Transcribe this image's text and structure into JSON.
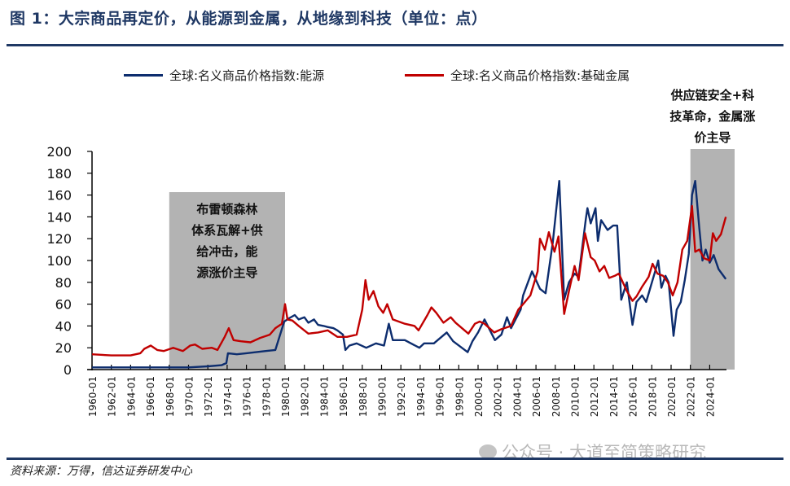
{
  "title": "图 1：大宗商品再定价，从能源到金属，从地缘到科技（单位：点）",
  "source": "资料来源：万得，信达证券研发中心",
  "watermark": "公众号 · 大道至简策略研究",
  "chart_data": {
    "type": "line",
    "title": "图 1：大宗商品再定价，从能源到金属，从地缘到科技（单位：点）",
    "ylim": [
      0,
      200
    ],
    "yticks": [
      "0",
      "20",
      "40",
      "60",
      "80",
      "100",
      "120",
      "140",
      "160",
      "180",
      "200"
    ],
    "xticks": [
      "1960-01",
      "1962-01",
      "1964-01",
      "1966-01",
      "1968-01",
      "1970-01",
      "1972-01",
      "1974-01",
      "1976-01",
      "1978-01",
      "1980-01",
      "1982-01",
      "1984-01",
      "1986-01",
      "1988-01",
      "1990-01",
      "1992-01",
      "1994-01",
      "1996-01",
      "1998-01",
      "2000-01",
      "2002-01",
      "2004-01",
      "2006-01",
      "2008-01",
      "2010-01",
      "2012-01",
      "2014-01",
      "2016-01",
      "2018-01",
      "2020-01",
      "2022-01",
      "2024-01"
    ],
    "grid": false,
    "legend_position": "top",
    "series": [
      {
        "name": "全球:名义商品价格指数:能源",
        "color": "#0d2d6e",
        "points": [
          [
            "1960-01",
            2
          ],
          [
            "1966-01",
            2
          ],
          [
            "1970-01",
            2
          ],
          [
            "1972-01",
            3
          ],
          [
            "1973-06",
            4
          ],
          [
            "1973-12",
            6
          ],
          [
            "1974-02",
            15
          ],
          [
            "1975-01",
            14
          ],
          [
            "1976-01",
            15
          ],
          [
            "1977-01",
            16
          ],
          [
            "1978-01",
            17
          ],
          [
            "1979-01",
            18
          ],
          [
            "1979-06",
            30
          ],
          [
            "1979-12",
            44
          ],
          [
            "1980-06",
            47
          ],
          [
            "1981-01",
            50
          ],
          [
            "1981-06",
            46
          ],
          [
            "1982-01",
            48
          ],
          [
            "1982-06",
            43
          ],
          [
            "1983-01",
            46
          ],
          [
            "1983-06",
            41
          ],
          [
            "1984-01",
            40
          ],
          [
            "1984-06",
            39
          ],
          [
            "1985-01",
            38
          ],
          [
            "1985-06",
            36
          ],
          [
            "1986-01",
            32
          ],
          [
            "1986-04",
            18
          ],
          [
            "1986-09",
            22
          ],
          [
            "1987-06",
            24
          ],
          [
            "1988-06",
            20
          ],
          [
            "1989-06",
            24
          ],
          [
            "1990-04",
            22
          ],
          [
            "1990-10",
            42
          ],
          [
            "1991-03",
            27
          ],
          [
            "1992-06",
            27
          ],
          [
            "1993-12",
            20
          ],
          [
            "1994-06",
            24
          ],
          [
            "1995-06",
            24
          ],
          [
            "1996-10",
            34
          ],
          [
            "1997-06",
            26
          ],
          [
            "1998-12",
            16
          ],
          [
            "1999-06",
            26
          ],
          [
            "2000-01",
            34
          ],
          [
            "2000-09",
            46
          ],
          [
            "2001-10",
            27
          ],
          [
            "2002-06",
            32
          ],
          [
            "2003-01",
            48
          ],
          [
            "2003-06",
            38
          ],
          [
            "2004-06",
            55
          ],
          [
            "2004-09",
            68
          ],
          [
            "2005-08",
            90
          ],
          [
            "2006-06",
            74
          ],
          [
            "2007-01",
            70
          ],
          [
            "2007-10",
            117
          ],
          [
            "2008-06",
            173
          ],
          [
            "2008-12",
            64
          ],
          [
            "2009-06",
            80
          ],
          [
            "2010-01",
            88
          ],
          [
            "2010-06",
            85
          ],
          [
            "2011-03",
            138
          ],
          [
            "2011-05",
            148
          ],
          [
            "2011-09",
            134
          ],
          [
            "2012-03",
            148
          ],
          [
            "2012-06",
            118
          ],
          [
            "2012-10",
            137
          ],
          [
            "2013-06",
            128
          ],
          [
            "2014-01",
            132
          ],
          [
            "2014-06",
            132
          ],
          [
            "2014-11",
            64
          ],
          [
            "2015-06",
            80
          ],
          [
            "2016-01",
            41
          ],
          [
            "2016-06",
            62
          ],
          [
            "2017-01",
            68
          ],
          [
            "2017-06",
            62
          ],
          [
            "2018-06",
            92
          ],
          [
            "2018-09",
            100
          ],
          [
            "2019-01",
            75
          ],
          [
            "2019-06",
            86
          ],
          [
            "2019-10",
            80
          ],
          [
            "2020-04",
            31
          ],
          [
            "2020-08",
            55
          ],
          [
            "2021-01",
            62
          ],
          [
            "2021-06",
            82
          ],
          [
            "2021-11",
            106
          ],
          [
            "2022-03",
            160
          ],
          [
            "2022-07",
            173
          ],
          [
            "2022-12",
            130
          ],
          [
            "2023-04",
            100
          ],
          [
            "2023-08",
            110
          ],
          [
            "2024-01",
            98
          ],
          [
            "2024-06",
            105
          ],
          [
            "2024-12",
            92
          ],
          [
            "2025-09",
            83
          ]
        ]
      },
      {
        "name": "全球:名义商品价格指数:基础金属",
        "color": "#c00000",
        "points": [
          [
            "1960-01",
            14
          ],
          [
            "1962-01",
            13
          ],
          [
            "1964-01",
            13
          ],
          [
            "1965-01",
            15
          ],
          [
            "1965-06",
            19
          ],
          [
            "1966-02",
            22
          ],
          [
            "1966-10",
            18
          ],
          [
            "1967-06",
            17
          ],
          [
            "1968-06",
            20
          ],
          [
            "1969-06",
            17
          ],
          [
            "1970-03",
            22
          ],
          [
            "1970-09",
            23
          ],
          [
            "1971-06",
            19
          ],
          [
            "1972-06",
            20
          ],
          [
            "1973-01",
            18
          ],
          [
            "1973-10",
            30
          ],
          [
            "1974-03",
            38
          ],
          [
            "1974-09",
            27
          ],
          [
            "1975-06",
            26
          ],
          [
            "1976-06",
            25
          ],
          [
            "1977-06",
            29
          ],
          [
            "1978-06",
            32
          ],
          [
            "1979-01",
            38
          ],
          [
            "1979-09",
            42
          ],
          [
            "1980-01",
            60
          ],
          [
            "1980-04",
            46
          ],
          [
            "1980-10",
            45
          ],
          [
            "1981-06",
            40
          ],
          [
            "1982-06",
            33
          ],
          [
            "1983-06",
            34
          ],
          [
            "1984-06",
            36
          ],
          [
            "1985-06",
            30
          ],
          [
            "1986-06",
            30
          ],
          [
            "1987-06",
            32
          ],
          [
            "1988-01",
            55
          ],
          [
            "1988-05",
            82
          ],
          [
            "1988-09",
            64
          ],
          [
            "1989-03",
            72
          ],
          [
            "1989-09",
            58
          ],
          [
            "1990-03",
            52
          ],
          [
            "1990-08",
            60
          ],
          [
            "1991-03",
            46
          ],
          [
            "1992-06",
            42
          ],
          [
            "1993-06",
            40
          ],
          [
            "1993-11",
            36
          ],
          [
            "1994-10",
            50
          ],
          [
            "1995-03",
            57
          ],
          [
            "1995-09",
            52
          ],
          [
            "1996-06",
            43
          ],
          [
            "1997-03",
            48
          ],
          [
            "1997-09",
            43
          ],
          [
            "1999-01",
            33
          ],
          [
            "1999-09",
            42
          ],
          [
            "2000-03",
            44
          ],
          [
            "2000-09",
            42
          ],
          [
            "2001-09",
            34
          ],
          [
            "2002-06",
            37
          ],
          [
            "2003-06",
            40
          ],
          [
            "2004-03",
            55
          ],
          [
            "2004-09",
            60
          ],
          [
            "2005-06",
            68
          ],
          [
            "2006-03",
            90
          ],
          [
            "2006-06",
            120
          ],
          [
            "2006-12",
            110
          ],
          [
            "2007-05",
            126
          ],
          [
            "2007-12",
            108
          ],
          [
            "2008-05",
            122
          ],
          [
            "2008-12",
            51
          ],
          [
            "2009-06",
            72
          ],
          [
            "2010-01",
            95
          ],
          [
            "2010-06",
            82
          ],
          [
            "2011-02",
            125
          ],
          [
            "2011-09",
            103
          ],
          [
            "2012-02",
            100
          ],
          [
            "2012-08",
            90
          ],
          [
            "2013-02",
            95
          ],
          [
            "2013-08",
            84
          ],
          [
            "2014-03",
            86
          ],
          [
            "2014-08",
            88
          ],
          [
            "2015-06",
            72
          ],
          [
            "2016-01",
            63
          ],
          [
            "2016-06",
            67
          ],
          [
            "2017-01",
            76
          ],
          [
            "2017-09",
            85
          ],
          [
            "2018-02",
            97
          ],
          [
            "2018-08",
            88
          ],
          [
            "2019-03",
            86
          ],
          [
            "2019-09",
            80
          ],
          [
            "2020-03",
            68
          ],
          [
            "2020-09",
            80
          ],
          [
            "2021-03",
            110
          ],
          [
            "2021-09",
            118
          ],
          [
            "2022-03",
            150
          ],
          [
            "2022-07",
            108
          ],
          [
            "2022-12",
            110
          ],
          [
            "2023-06",
            102
          ],
          [
            "2024-01",
            100
          ],
          [
            "2024-05",
            125
          ],
          [
            "2024-09",
            118
          ],
          [
            "2025-03",
            124
          ],
          [
            "2025-09",
            140
          ]
        ]
      }
    ],
    "shaded_periods": [
      {
        "start": "1968-01",
        "end": "1980-01",
        "label_lines": [
          "布雷顿森林",
          "体系瓦解+供",
          "给冲击，能",
          "源涨价主导"
        ]
      },
      {
        "start": "2022-01",
        "end": "2026-08",
        "label_lines": [
          "供应链安全+科",
          "技革命，金属涨",
          "价主导"
        ]
      }
    ]
  }
}
